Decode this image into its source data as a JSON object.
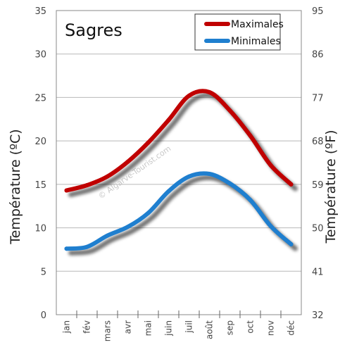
{
  "chart_data": {
    "type": "line",
    "title": "Sagres",
    "categories": [
      "jan",
      "fév",
      "mars",
      "avr",
      "mai",
      "juin",
      "juil",
      "août",
      "sep",
      "oct",
      "nov",
      "déc"
    ],
    "series": [
      {
        "name": "Maximales",
        "color": "#c00000",
        "values": [
          14.3,
          14.9,
          15.9,
          17.6,
          19.8,
          22.4,
          25.2,
          25.6,
          23.5,
          20.6,
          17.2,
          15.0
        ]
      },
      {
        "name": "Minimales",
        "color": "#1f7fcf",
        "values": [
          7.6,
          7.8,
          9.1,
          10.1,
          11.7,
          14.2,
          15.9,
          16.2,
          15.1,
          13.2,
          10.2,
          8.1
        ]
      }
    ],
    "ylabel": "Température (ºC)",
    "y2label": "Température (ºF)",
    "ylim": [
      0,
      35
    ],
    "yticks": [
      "0",
      "5",
      "10",
      "15",
      "20",
      "25",
      "30",
      "35"
    ],
    "y2ticks": [
      "32",
      "41",
      "50",
      "59",
      "68",
      "77",
      "86",
      "95"
    ],
    "grid": true,
    "legend_position": "top-right",
    "watermark": "© Algarve-Tourist.com"
  }
}
